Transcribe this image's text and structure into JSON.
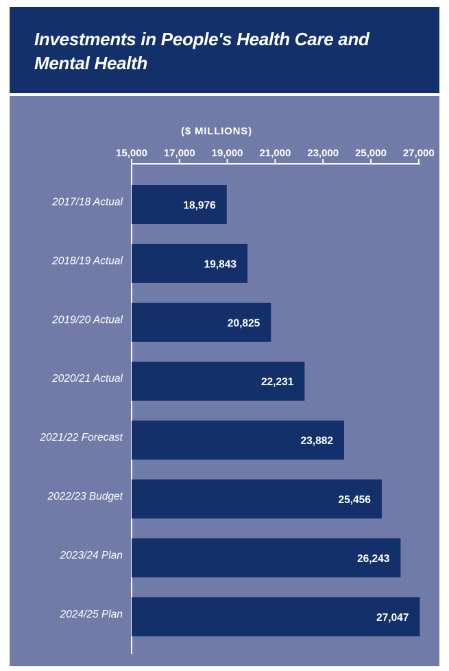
{
  "colors": {
    "header_bg": "#13306a",
    "panel_bg": "#717ba7",
    "bar": "#13306a",
    "text": "#ffffff"
  },
  "chart_data": {
    "type": "bar",
    "orientation": "horizontal",
    "title": "Investments in People's Health Care and Mental Health",
    "unit_label": "($ MILLIONS)",
    "categories": [
      "2017/18 Actual",
      "2018/19 Actual",
      "2019/20 Actual",
      "2020/21 Actual",
      "2021/22 Forecast",
      "2022/23 Budget",
      "2023/24 Plan",
      "2024/25 Plan"
    ],
    "values": [
      18976,
      19843,
      20825,
      22231,
      23882,
      25456,
      26243,
      27047
    ],
    "value_labels": [
      "18,976",
      "19,843",
      "20,825",
      "22,231",
      "23,882",
      "25,456",
      "26,243",
      "27,047"
    ],
    "xlim": [
      15000,
      27000
    ],
    "ticks": [
      15000,
      17000,
      19000,
      21000,
      23000,
      25000,
      27000
    ],
    "tick_labels": [
      "15,000",
      "17,000",
      "19,000",
      "21,000",
      "23,000",
      "25,000",
      "27,000"
    ],
    "axis_position": "top",
    "grid": false,
    "legend": "none"
  }
}
